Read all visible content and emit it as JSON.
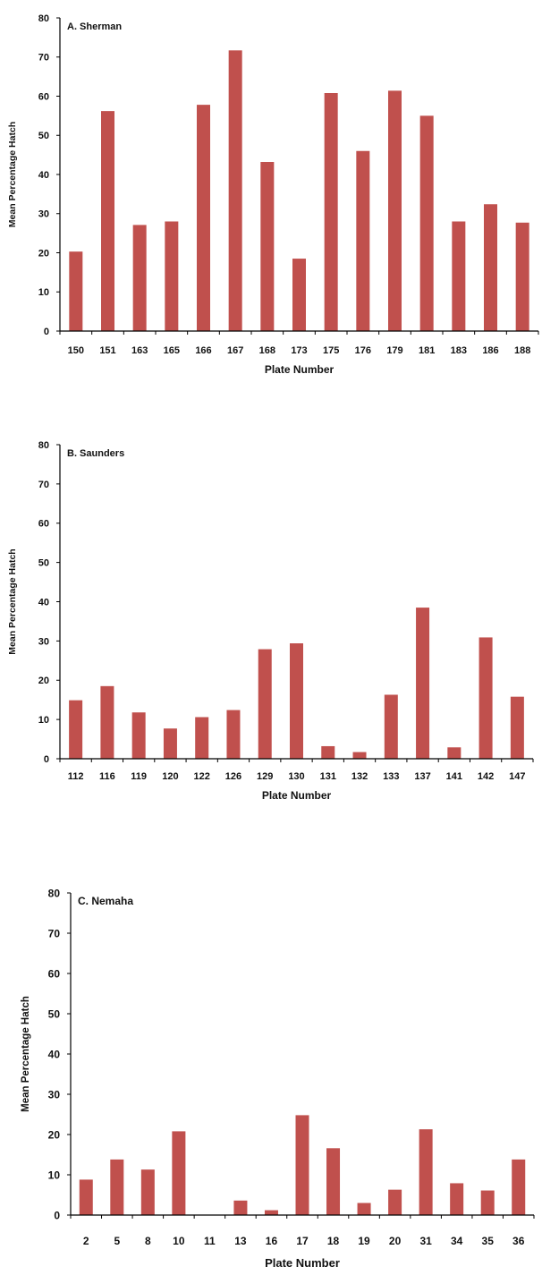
{
  "colors": {
    "bar": "#c0504d",
    "axis": "#000000",
    "text": "#111111"
  },
  "chart_data": [
    {
      "type": "bar",
      "title": "A. Sherman",
      "xlabel": "Plate Number",
      "ylabel": "Mean Percentage Hatch",
      "ylim": [
        0,
        80
      ],
      "yticks": [
        "0",
        "10",
        "20",
        "30",
        "40",
        "50",
        "60",
        "70",
        "80"
      ],
      "grid": false,
      "categories": [
        "150",
        "151",
        "163",
        "165",
        "166",
        "167",
        "168",
        "173",
        "175",
        "176",
        "179",
        "181",
        "183",
        "186",
        "188"
      ],
      "values": [
        20.3,
        56.2,
        27.1,
        28.0,
        57.8,
        71.7,
        43.2,
        18.5,
        60.8,
        46.0,
        61.4,
        55.0,
        28.0,
        32.4,
        27.7
      ]
    },
    {
      "type": "bar",
      "title": "B. Saunders",
      "xlabel": "Plate Number",
      "ylabel": "Mean Percentage Hatch",
      "ylim": [
        0,
        80
      ],
      "yticks": [
        "0",
        "10",
        "20",
        "30",
        "40",
        "50",
        "60",
        "70",
        "80"
      ],
      "grid": false,
      "categories": [
        "112",
        "116",
        "119",
        "120",
        "122",
        "126",
        "129",
        "130",
        "131",
        "132",
        "133",
        "137",
        "141",
        "142",
        "147"
      ],
      "values": [
        14.9,
        18.5,
        11.8,
        7.7,
        10.6,
        12.4,
        27.9,
        29.4,
        3.2,
        1.7,
        16.3,
        38.5,
        2.9,
        30.9,
        15.8
      ]
    },
    {
      "type": "bar",
      "title": "C. Nemaha",
      "xlabel": "Plate Number",
      "ylabel": "Mean Percentage Hatch",
      "ylim": [
        0,
        80
      ],
      "yticks": [
        "0",
        "10",
        "20",
        "30",
        "40",
        "50",
        "60",
        "70",
        "80"
      ],
      "grid": false,
      "categories": [
        "2",
        "5",
        "8",
        "10",
        "11",
        "13",
        "16",
        "17",
        "18",
        "19",
        "20",
        "31",
        "34",
        "35",
        "36"
      ],
      "values": [
        8.8,
        13.8,
        11.3,
        20.8,
        0,
        3.6,
        1.2,
        24.8,
        16.6,
        3.0,
        6.3,
        21.3,
        7.9,
        6.1,
        13.8
      ]
    }
  ]
}
